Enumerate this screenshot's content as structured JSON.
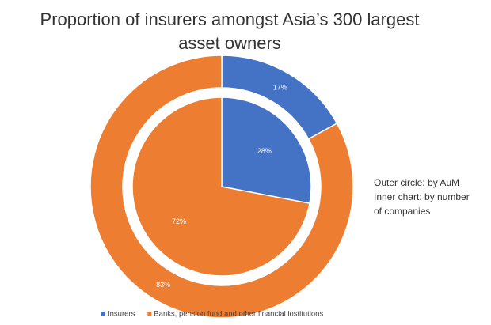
{
  "chart_data": {
    "type": "pie",
    "title": "Proportion of insurers amongst Asia’s 300 largest asset owners",
    "categories": [
      "Insurers",
      "Banks, pension fund and other financial institutions"
    ],
    "colors": [
      "#4472c4",
      "#ed7d31"
    ],
    "series": [
      {
        "values": [
          17,
          83
        ],
        "value_labels": [
          "17%",
          "83%"
        ]
      },
      {
        "values": [
          28,
          72
        ],
        "value_labels": [
          "28%",
          "72%"
        ]
      }
    ],
    "annotation": [
      "Outer circle: by AuM",
      "Inner chart: by number",
      "of companies"
    ]
  }
}
